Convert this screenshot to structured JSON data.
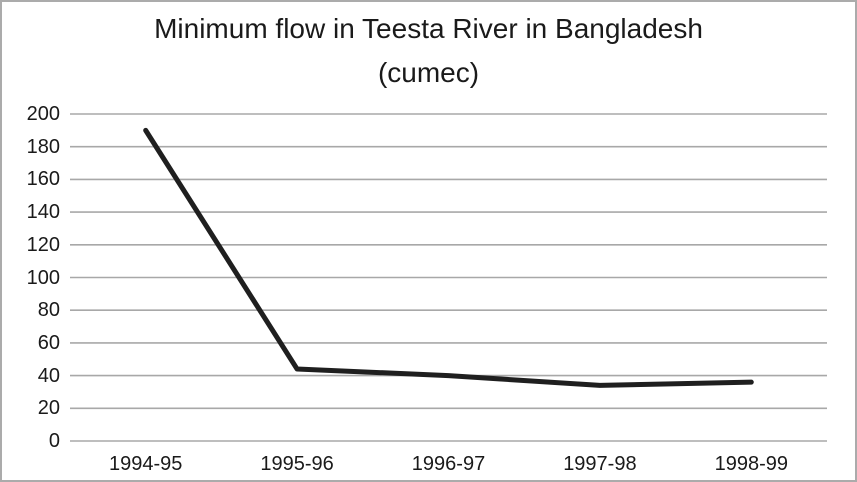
{
  "window": {
    "background": "#ffffff",
    "border_color": "#ababab"
  },
  "chart_data": {
    "type": "line",
    "title": "Minimum flow in Teesta River in Bangladesh",
    "subtitle": "(cumec)",
    "categories": [
      "1994-95",
      "1995-96",
      "1996-97",
      "1997-98",
      "1998-99"
    ],
    "series": [
      {
        "name": "Minimum flow",
        "values": [
          190,
          44,
          40,
          34,
          36
        ]
      }
    ],
    "xlabel": "",
    "ylabel": "",
    "ylim": [
      0,
      200
    ],
    "y_tick_step": 20,
    "y_ticks": [
      0,
      20,
      40,
      60,
      80,
      100,
      120,
      140,
      160,
      180,
      200
    ],
    "grid": "horizontal",
    "legend": "none",
    "line_color": "#1f1f1f",
    "line_width": 5,
    "gridline_color": "#a8a8a8",
    "text_color": "#1a1a1a"
  }
}
